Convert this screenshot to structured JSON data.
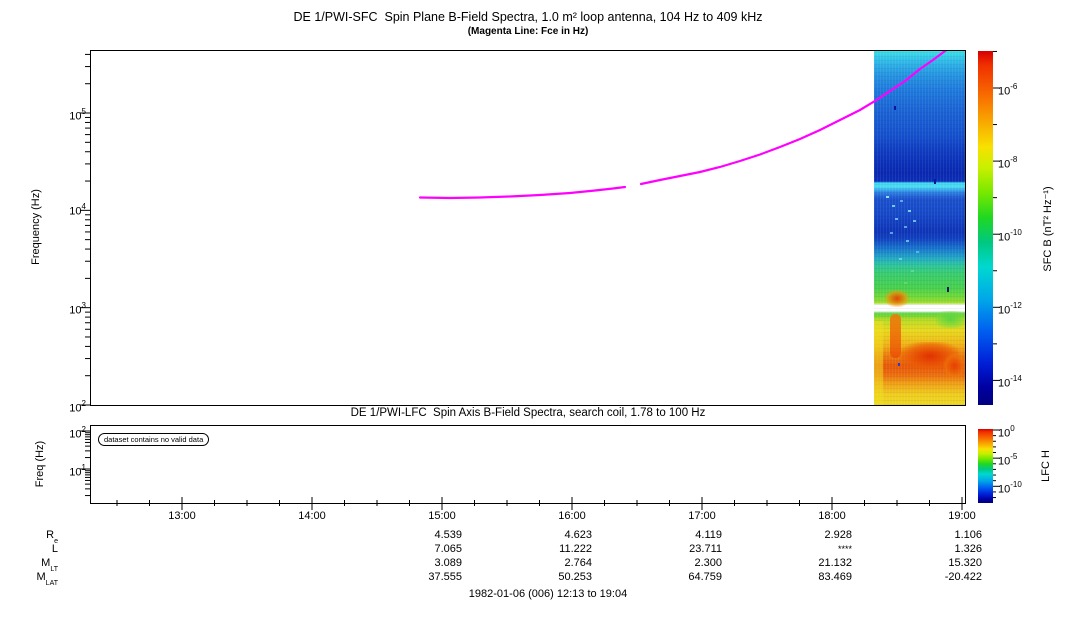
{
  "figure": {
    "title": "DE 1/PWI-SFC  Spin Plane B-Field Spectra, 1.0 m² loop antenna, 104 Hz to 409 kHz",
    "subtitle": "(Magenta Line: Fce in Hz)",
    "date_range": "1982-01-06 (006) 12:13 to 19:04"
  },
  "sfc_panel": {
    "ylabel": "Frequency (Hz)",
    "yticks": [
      {
        "b": "10",
        "e": "5"
      },
      {
        "b": "10",
        "e": "4"
      },
      {
        "b": "10",
        "e": "3"
      },
      {
        "b": "10",
        "e": "2"
      }
    ],
    "fce_line_color": "#ff00ff",
    "colorbar": {
      "label": "SFC B (nT² Hz⁻¹)",
      "ticks": [
        {
          "b": "10",
          "e": "-6"
        },
        {
          "b": "10",
          "e": "-8"
        },
        {
          "b": "10",
          "e": "-10"
        },
        {
          "b": "10",
          "e": "-12"
        },
        {
          "b": "10",
          "e": "-14"
        }
      ]
    }
  },
  "lfc_panel": {
    "title": "DE 1/PWI-LFC  Spin Axis B-Field Spectra, search coil, 1.78 to 100 Hz",
    "ylabel": "Freq (Hz)",
    "yticks": [
      {
        "b": "10",
        "e": "2"
      },
      {
        "b": "10",
        "e": "1"
      }
    ],
    "no_data_message": "dataset contains no valid data",
    "colorbar": {
      "label": "LFC H",
      "ticks": [
        {
          "b": "10",
          "e": "0"
        },
        {
          "b": "10",
          "e": "-5"
        },
        {
          "b": "10",
          "e": "-10"
        }
      ]
    }
  },
  "time_axis": {
    "labels": [
      "13:00",
      "14:00",
      "15:00",
      "16:00",
      "17:00",
      "18:00",
      "19:00"
    ]
  },
  "ephemeris": {
    "rows": [
      {
        "label": "R",
        "sub": "e",
        "values": [
          "4.539",
          "4.623",
          "4.119",
          "2.928",
          "1.106"
        ]
      },
      {
        "label": "L",
        "sub": "",
        "values": [
          "7.065",
          "11.222",
          "23.711",
          "****",
          "1.326"
        ]
      },
      {
        "label": "M",
        "sub": "LT",
        "values": [
          "3.089",
          "2.764",
          "2.300",
          "21.132",
          "15.320"
        ]
      },
      {
        "label": "M",
        "sub": "LAT",
        "values": [
          "37.555",
          "50.253",
          "64.759",
          "83.469",
          "-20.422"
        ]
      }
    ]
  },
  "chart_data": [
    {
      "type": "heatmap",
      "title": "DE 1/PWI-SFC  Spin Plane B-Field Spectra, 1.0 m² loop antenna, 104 Hz to 409 kHz",
      "subtitle": "(Magenta Line: Fce in Hz)",
      "x_range": [
        "12:13",
        "19:04"
      ],
      "x_ticks": [
        "13:00",
        "14:00",
        "15:00",
        "16:00",
        "17:00",
        "18:00",
        "19:00"
      ],
      "ylabel": "Frequency (Hz)",
      "y_scale": "log",
      "y_range_hz": [
        100,
        440000
      ],
      "colorbar_label": "SFC B (nT² Hz⁻¹)",
      "colorbar_scale": "log",
      "colorbar_range": [
        1e-15,
        1e-05
      ],
      "colormap": "rainbow",
      "spectrogram_coverage": {
        "start": "18:21",
        "end": "19:04",
        "description": "Spectrogram data present only near end of interval: cyan at top near 400 kHz, dark blue (~1e-13) from ~20-300 kHz with a bright cyan band near 15 kHz, transition through green to intense orange/red (~1e-8 to 1e-7) below ~2 kHz, thin white data gap near 900 Hz, yellow at lowest frequencies"
      },
      "overlay_line": {
        "name": "Fce",
        "color": "#ff00ff",
        "points_time_hz": [
          [
            "14:49",
            13600
          ],
          [
            "15:00",
            13700
          ],
          [
            "15:30",
            14200
          ],
          [
            "16:00",
            15500
          ],
          [
            "16:24",
            17800
          ],
          [
            "16:31",
            19100
          ],
          [
            "17:00",
            25500
          ],
          [
            "17:30",
            41000
          ],
          [
            "18:00",
            78000
          ],
          [
            "18:20",
            133000
          ],
          [
            "18:40",
            265000
          ],
          [
            "18:57",
            430000
          ]
        ],
        "gap": [
          "16:25",
          "16:30"
        ]
      }
    },
    {
      "type": "heatmap",
      "title": "DE 1/PWI-LFC  Spin Axis B-Field Spectra, search coil, 1.78 to 100 Hz",
      "ylabel": "Freq (Hz)",
      "y_scale": "log",
      "y_range_hz": [
        1.78,
        100
      ],
      "colorbar_label": "LFC H",
      "colorbar_scale": "log",
      "colorbar_range": [
        1e-13,
        1
      ],
      "colormap": "rainbow",
      "status": "dataset contains no valid data"
    },
    {
      "type": "table",
      "row_labels": [
        "Re",
        "L",
        "MLT",
        "MLAT"
      ],
      "columns": [
        "15:00",
        "16:00",
        "17:00",
        "18:00",
        "19:00"
      ],
      "rows": [
        [
          4.539,
          4.623,
          4.119,
          2.928,
          1.106
        ],
        [
          7.065,
          11.222,
          23.711,
          "****",
          1.326
        ],
        [
          3.089,
          2.764,
          2.3,
          21.132,
          15.32
        ],
        [
          37.555,
          50.253,
          64.759,
          83.469,
          -20.422
        ]
      ]
    }
  ]
}
